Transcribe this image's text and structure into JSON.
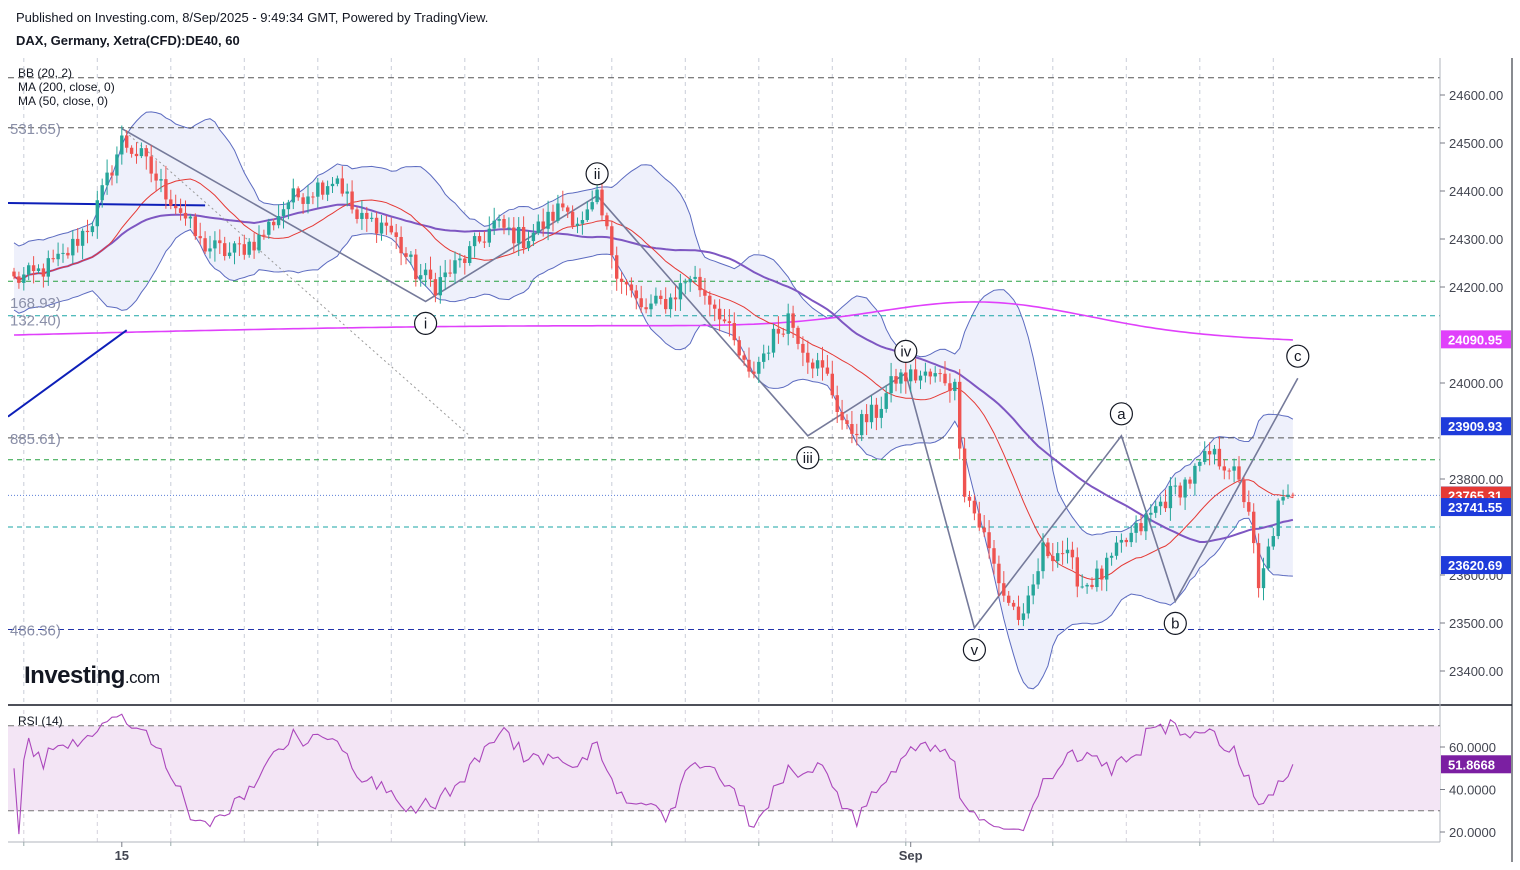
{
  "header": {
    "published": "Published on Investing.com, 8/Sep/2025 - 9:49:34 GMT, Powered by TradingView.",
    "symbol": "DAX, Germany, Xetra(CFD):DE40, 60"
  },
  "indicators": [
    "BB (20, 2)",
    "MA (200, close, 0)",
    "MA (50, close, 0)"
  ],
  "rsi_label": "RSI (14)",
  "logo": {
    "text": "Investing",
    "suffix": ".com"
  },
  "colors": {
    "up": "#26a69a",
    "down": "#ef5350",
    "bb": "#5c6bc0",
    "bb_fill": "#eef0fb",
    "ma50": "#7e57c2",
    "ma200": "#e040fb",
    "rsi": "#ab47bc",
    "rsi_fill": "#f3e5f5",
    "wave": "#757a9a",
    "blue_trend": "#0d1fb8"
  },
  "chart_data": {
    "type": "candlestick",
    "yaxis_ticks": [
      24600,
      24500,
      24400,
      24300,
      24200,
      24000,
      23800,
      23600,
      23500,
      23400
    ],
    "ylim": [
      23340,
      24650
    ],
    "xaxis_labels": [
      {
        "label": "15",
        "bar": 22
      },
      {
        "label": "Sep",
        "bar": 183
      }
    ],
    "n_bars": 262,
    "price_tags": [
      {
        "value": "24090.95",
        "price": 24090.95,
        "color": "#e040fb"
      },
      {
        "value": "23909.93",
        "price": 23909.93,
        "color": "#1e3bdb"
      },
      {
        "value": "23765.81",
        "price": 23765.81,
        "color": "#5b7fd6"
      },
      {
        "value": "23765.31",
        "price": 23765.31,
        "color": "#e53935"
      },
      {
        "value": "23741.55",
        "price": 23741.55,
        "color": "#1e3bdb"
      },
      {
        "value": "23620.69",
        "price": 23620.69,
        "color": "#1e3bdb"
      }
    ],
    "fib_labels": [
      {
        "text": "531.65)",
        "price": 24531.65
      },
      {
        "text": "168.93)",
        "price": 24168.93
      },
      {
        "text": "132.40)",
        "price": 24132.4
      },
      {
        "text": "885.61)",
        "price": 23885.61
      },
      {
        "text": "486.36)",
        "price": 23486.36
      }
    ],
    "hlines": [
      {
        "price": 24636,
        "color": "#555555",
        "dash": "6,4"
      },
      {
        "price": 24531.65,
        "color": "#555555",
        "dash": "6,4"
      },
      {
        "price": 24212,
        "color": "#26a040",
        "dash": "5,4"
      },
      {
        "price": 24140,
        "color": "#1aa6a6",
        "dash": "5,4"
      },
      {
        "price": 23885.61,
        "color": "#555555",
        "dash": "6,4"
      },
      {
        "price": 23840,
        "color": "#26a040",
        "dash": "5,4"
      },
      {
        "price": 23765.81,
        "color": "#5b7fd6",
        "dash": "1,2"
      },
      {
        "price": 23700,
        "color": "#1aa6a6",
        "dash": "5,4"
      },
      {
        "price": 23486.36,
        "color": "#2233aa",
        "dash": "6,4"
      }
    ],
    "waves": [
      {
        "label": "i",
        "bar": 84,
        "price": 24170,
        "pos": "below"
      },
      {
        "label": "ii",
        "bar": 119,
        "price": 24390,
        "pos": "above"
      },
      {
        "label": "iii",
        "bar": 162,
        "price": 23890,
        "pos": "below"
      },
      {
        "label": "iv",
        "bar": 182,
        "price": 24020,
        "pos": "above"
      },
      {
        "label": "v",
        "bar": 196,
        "price": 23490,
        "pos": "below"
      },
      {
        "label": "a",
        "bar": 226,
        "price": 23890,
        "pos": "above"
      },
      {
        "label": "b",
        "bar": 237,
        "price": 23545,
        "pos": "below"
      },
      {
        "label": "c",
        "bar": 262,
        "price": 24010,
        "pos": "above"
      }
    ],
    "ma200_start": 24100,
    "ma200_end": 24088,
    "rsi": {
      "ticks": [
        60,
        40,
        20
      ],
      "upper": 70,
      "lower": 30,
      "last": 51.8668,
      "last_label": "51.8668"
    }
  }
}
